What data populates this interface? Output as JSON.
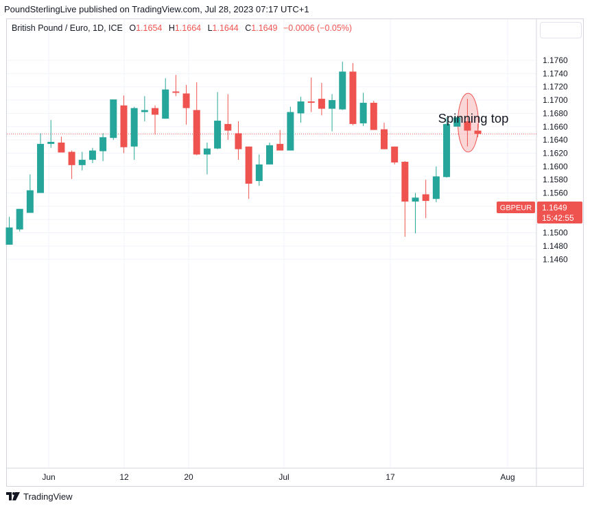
{
  "header": {
    "attribution": "PoundSterlingLive published on TradingView.com, Jul 28, 2023 07:17 UTC+1"
  },
  "legend": {
    "symbol": "British Pound / Euro, 1D, ICE",
    "o_label": "O",
    "o_value": "1.1654",
    "h_label": "H",
    "h_value": "1.1664",
    "l_label": "L",
    "l_value": "1.1644",
    "c_label": "C",
    "c_value": "1.1649",
    "change": "−0.0006 (−0.05%)"
  },
  "annotation": {
    "text": "Spinning top"
  },
  "price_tag": {
    "symbol": "GBPEUR",
    "price": "1.1649",
    "countdown": "15:42:55"
  },
  "footer": {
    "brand": "TradingView"
  },
  "colors": {
    "up": "#26a69a",
    "down": "#ef5350",
    "highlight_fill": "#f8c8c8",
    "highlight_stroke": "#ef5350"
  },
  "chart_data": {
    "type": "candlestick",
    "y_ticks": [
      "1.1760",
      "1.1740",
      "1.1720",
      "1.1700",
      "1.1680",
      "1.1660",
      "1.1640",
      "1.1620",
      "1.1600",
      "1.1580",
      "1.1560",
      "1.1540",
      "1.1520",
      "1.1500",
      "1.1480",
      "1.1460"
    ],
    "x_ticks": [
      "Jun",
      "12",
      "20",
      "Jul",
      "17",
      "Aug"
    ],
    "ylim": [
      1.1454,
      1.1776
    ],
    "grid": true,
    "current_price_line": 1.1649,
    "candles": [
      [
        1.1482,
        1.1524,
        1.1482,
        1.1508
      ],
      [
        1.1505,
        1.1536,
        1.1502,
        1.1536
      ],
      [
        1.153,
        1.1588,
        1.153,
        1.1564
      ],
      [
        1.156,
        1.165,
        1.156,
        1.1634
      ],
      [
        1.1634,
        1.167,
        1.1628,
        1.1637
      ],
      [
        1.1636,
        1.1645,
        1.1621,
        1.1621
      ],
      [
        1.1622,
        1.1624,
        1.1581,
        1.1602
      ],
      [
        1.1602,
        1.1622,
        1.1594,
        1.161
      ],
      [
        1.161,
        1.1628,
        1.1605,
        1.1624
      ],
      [
        1.1623,
        1.165,
        1.1608,
        1.1644
      ],
      [
        1.1643,
        1.1701,
        1.164,
        1.1701
      ],
      [
        1.1692,
        1.1707,
        1.162,
        1.1629
      ],
      [
        1.163,
        1.169,
        1.161,
        1.1688
      ],
      [
        1.1682,
        1.1706,
        1.1668,
        1.1685
      ],
      [
        1.1688,
        1.1692,
        1.1648,
        1.1678
      ],
      [
        1.1672,
        1.1733,
        1.1672,
        1.1716
      ],
      [
        1.1713,
        1.1738,
        1.1706,
        1.1711
      ],
      [
        1.171,
        1.1723,
        1.1663,
        1.1688
      ],
      [
        1.1685,
        1.1727,
        1.1617,
        1.1618
      ],
      [
        1.1618,
        1.1636,
        1.1588,
        1.1627
      ],
      [
        1.1627,
        1.1712,
        1.1626,
        1.1669
      ],
      [
        1.1664,
        1.1709,
        1.164,
        1.1654
      ],
      [
        1.165,
        1.1668,
        1.161,
        1.1626
      ],
      [
        1.163,
        1.163,
        1.1551,
        1.1574
      ],
      [
        1.1578,
        1.1618,
        1.1571,
        1.1603
      ],
      [
        1.1603,
        1.1636,
        1.1603,
        1.1632
      ],
      [
        1.1634,
        1.1655,
        1.1625,
        1.1624
      ],
      [
        1.1624,
        1.169,
        1.1624,
        1.1682
      ],
      [
        1.168,
        1.1705,
        1.1666,
        1.1698
      ],
      [
        1.1698,
        1.1734,
        1.1682,
        1.1696
      ],
      [
        1.1702,
        1.1726,
        1.1677,
        1.1687
      ],
      [
        1.1687,
        1.1709,
        1.1653,
        1.17
      ],
      [
        1.1686,
        1.1758,
        1.1685,
        1.1743
      ],
      [
        1.1743,
        1.1756,
        1.1662,
        1.1664
      ],
      [
        1.1665,
        1.1711,
        1.1661,
        1.1696
      ],
      [
        1.1696,
        1.1699,
        1.1655,
        1.1655
      ],
      [
        1.1656,
        1.1666,
        1.1626,
        1.1626
      ],
      [
        1.163,
        1.163,
        1.1603,
        1.1606
      ],
      [
        1.1607,
        1.1608,
        1.1494,
        1.1547
      ],
      [
        1.1547,
        1.156,
        1.1499,
        1.1553
      ],
      [
        1.1558,
        1.158,
        1.1522,
        1.1548
      ],
      [
        1.1551,
        1.16,
        1.1546,
        1.1585
      ],
      [
        1.1584,
        1.1674,
        1.1583,
        1.1664
      ],
      [
        1.166,
        1.1674,
        1.1662,
        1.1674
      ],
      [
        1.1668,
        1.1702,
        1.163,
        1.1654
      ],
      [
        1.1654,
        1.1664,
        1.1644,
        1.1649
      ]
    ]
  }
}
